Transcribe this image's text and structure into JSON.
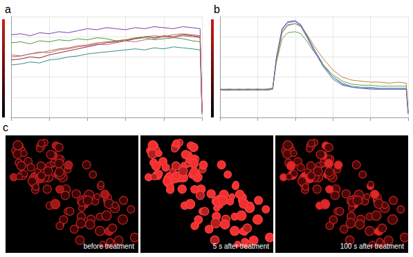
{
  "chart_data": [
    {
      "type": "line",
      "title": "a",
      "x": [
        0,
        5,
        10,
        15,
        20,
        25,
        30,
        35,
        40,
        45,
        50,
        55,
        60,
        65,
        70,
        75,
        80,
        85,
        90,
        95,
        99,
        100
      ],
      "xlim": [
        0,
        100
      ],
      "xticks": [
        0,
        20,
        40,
        60,
        80,
        100
      ],
      "ylim": [
        0,
        100
      ],
      "yticks": [
        0,
        20,
        40,
        60,
        80,
        100
      ],
      "grid": true,
      "tick_labels": false,
      "series": [
        {
          "color": "#7a3fb0",
          "values": [
            82,
            83,
            81,
            84,
            83,
            85,
            84,
            86,
            88,
            87,
            89,
            88,
            87,
            89,
            88,
            90,
            89,
            88,
            90,
            89,
            88,
            5
          ]
        },
        {
          "color": "#4a9a40",
          "values": [
            74,
            75,
            73,
            76,
            75,
            77,
            76,
            78,
            77,
            79,
            78,
            76,
            77,
            78,
            79,
            77,
            78,
            79,
            78,
            76,
            75,
            3
          ]
        },
        {
          "color": "#8b2a3a",
          "values": [
            57,
            58,
            60,
            59,
            62,
            64,
            66,
            68,
            70,
            72,
            74,
            75,
            76,
            78,
            80,
            79,
            81,
            80,
            82,
            81,
            80,
            6
          ]
        },
        {
          "color": "#3a8a8a",
          "values": [
            52,
            53,
            55,
            54,
            57,
            58,
            60,
            61,
            63,
            64,
            65,
            66,
            67,
            68,
            67,
            69,
            68,
            70,
            69,
            68,
            67,
            8
          ]
        },
        {
          "color": "#b07040",
          "values": [
            60,
            61,
            63,
            64,
            66,
            68,
            69,
            71,
            72,
            74,
            75,
            76,
            77,
            79,
            80,
            81,
            80,
            82,
            83,
            82,
            81,
            4
          ]
        },
        {
          "color": "#c06080",
          "values": [
            62,
            61,
            63,
            65,
            64,
            67,
            68,
            70,
            71,
            73,
            72,
            74,
            76,
            75,
            77,
            78,
            80,
            79,
            81,
            80,
            79,
            7
          ]
        }
      ]
    },
    {
      "type": "line",
      "title": "b",
      "x": [
        0,
        5,
        10,
        15,
        20,
        25,
        28,
        30,
        33,
        36,
        40,
        43,
        46,
        50,
        55,
        60,
        65,
        70,
        75,
        80,
        85,
        90,
        95,
        99,
        100
      ],
      "xlim": [
        0,
        100
      ],
      "xticks": [
        0,
        20,
        40,
        60,
        80,
        100
      ],
      "ylim": [
        0,
        100
      ],
      "yticks": [
        0,
        20,
        40,
        60,
        80,
        100
      ],
      "grid": true,
      "tick_labels": false,
      "series": [
        {
          "color": "#4060c0",
          "values": [
            27,
            27,
            28,
            27,
            28,
            27,
            28,
            60,
            88,
            95,
            96,
            92,
            82,
            68,
            52,
            40,
            33,
            30,
            29,
            29,
            28,
            28,
            28,
            28,
            5
          ]
        },
        {
          "color": "#40a0a0",
          "values": [
            27,
            28,
            27,
            28,
            27,
            28,
            28,
            58,
            85,
            92,
            93,
            90,
            80,
            66,
            51,
            40,
            34,
            31,
            30,
            30,
            29,
            29,
            29,
            29,
            4
          ]
        },
        {
          "color": "#60a040",
          "values": [
            28,
            27,
            28,
            28,
            27,
            28,
            29,
            55,
            78,
            84,
            85,
            83,
            76,
            65,
            52,
            42,
            36,
            33,
            32,
            32,
            31,
            31,
            31,
            31,
            6
          ]
        },
        {
          "color": "#c08040",
          "values": [
            27,
            28,
            28,
            27,
            28,
            27,
            28,
            57,
            84,
            91,
            93,
            91,
            83,
            71,
            58,
            47,
            40,
            37,
            36,
            35,
            35,
            34,
            35,
            34,
            5
          ]
        },
        {
          "color": "#8060b0",
          "values": [
            28,
            28,
            27,
            28,
            28,
            28,
            29,
            59,
            87,
            94,
            95,
            91,
            81,
            66,
            50,
            38,
            32,
            30,
            29,
            28,
            28,
            28,
            28,
            28,
            3
          ]
        }
      ]
    }
  ],
  "image_panel": {
    "label": "c",
    "images": [
      {
        "caption": "before treatment"
      },
      {
        "caption": "5 s after treatment"
      },
      {
        "caption": "100 s after treatment"
      }
    ]
  }
}
